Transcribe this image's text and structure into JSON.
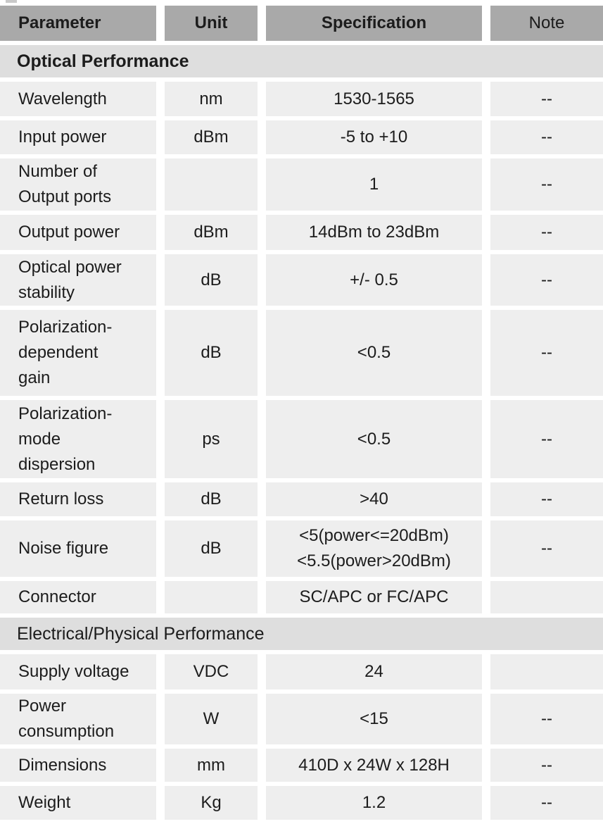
{
  "colors": {
    "header_background": "#a9a9a9",
    "section_background": "#dedede",
    "cell_background": "#eeeeee",
    "gutter": "#ffffff",
    "text": "#1c1c1c"
  },
  "table": {
    "columns": [
      {
        "label": "Parameter"
      },
      {
        "label": "Unit"
      },
      {
        "label": "Specification"
      },
      {
        "label": "Note"
      }
    ],
    "sections": [
      {
        "title": "Optical Performance",
        "rows": [
          {
            "parameter": "Wavelength",
            "unit": "nm",
            "specification": "1530-1565",
            "note": "--"
          },
          {
            "parameter": "Input power",
            "unit": "dBm",
            "specification": "-5 to +10",
            "note": "--"
          },
          {
            "parameter": "Number of\nOutput ports",
            "unit": "",
            "specification": "1",
            "note": "--"
          },
          {
            "parameter": "Output power",
            "unit": "dBm",
            "specification": "14dBm to 23dBm",
            "note": "--"
          },
          {
            "parameter": "Optical power\nstability",
            "unit": "dB",
            "specification": "+/- 0.5",
            "note": "--"
          },
          {
            "parameter": "Polarization-\ndependent\ngain",
            "unit": "dB",
            "specification": "<0.5",
            "note": "--"
          },
          {
            "parameter": "Polarization-\nmode\ndispersion",
            "unit": "ps",
            "specification": "<0.5",
            "note": "--"
          },
          {
            "parameter": "Return loss",
            "unit": "dB",
            "specification": ">40",
            "note": "--"
          },
          {
            "parameter": "Noise figure",
            "unit": "dB",
            "specification": "<5(power<=20dBm)\n<5.5(power>20dBm)",
            "note": "--"
          },
          {
            "parameter": "Connector",
            "unit": "",
            "specification": "SC/APC or FC/APC",
            "note": ""
          }
        ]
      },
      {
        "title": "Electrical/Physical Performance",
        "rows": [
          {
            "parameter": "Supply voltage",
            "unit": "VDC",
            "specification": "24",
            "note": ""
          },
          {
            "parameter": "Power\nconsumption",
            "unit": "W",
            "specification": "<15",
            "note": "--"
          },
          {
            "parameter": "Dimensions",
            "unit": "mm",
            "specification": "410D x 24W x 128H",
            "note": "--"
          },
          {
            "parameter": "Weight",
            "unit": "Kg",
            "specification": "1.2",
            "note": "--"
          }
        ]
      }
    ]
  }
}
